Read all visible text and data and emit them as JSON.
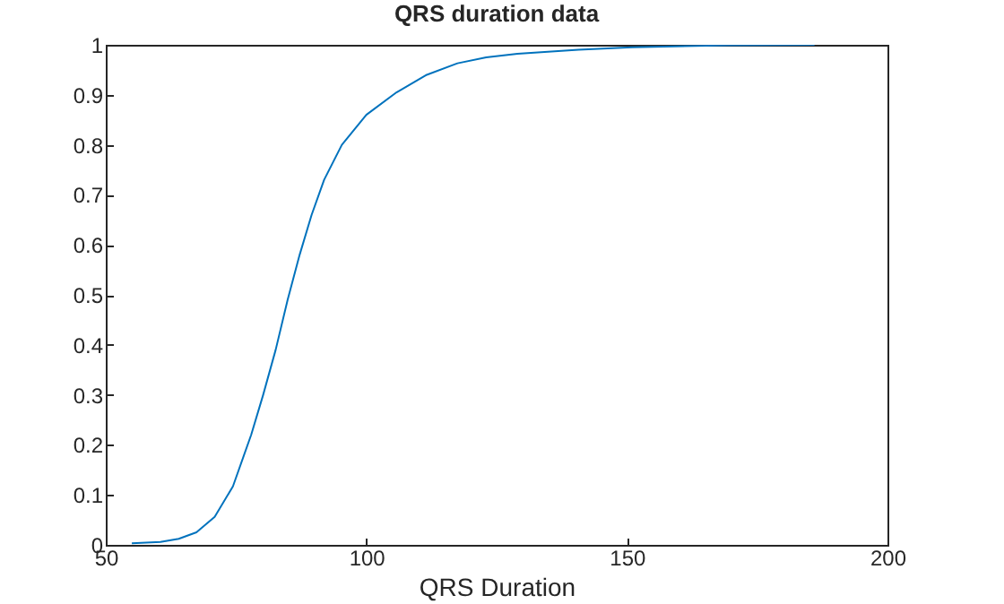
{
  "chart_data": {
    "type": "line",
    "title": "QRS duration data",
    "xlabel": "QRS Duration",
    "x": [
      55,
      60.5,
      64,
      67.4,
      70.9,
      74.4,
      77.9,
      80.2,
      82.6,
      84.9,
      87.2,
      89.5,
      91.9,
      95.3,
      100,
      105.8,
      111.6,
      117.5,
      123,
      129,
      140.7,
      151,
      169.6,
      186
    ],
    "series": [
      {
        "color": "#0072bd",
        "values": [
          0.003,
          0.006,
          0.012,
          0.025,
          0.056,
          0.117,
          0.22,
          0.3,
          0.39,
          0.49,
          0.58,
          0.66,
          0.73,
          0.8,
          0.86,
          0.905,
          0.94,
          0.963,
          0.975,
          0.982,
          0.99,
          0.995,
          0.999,
          1
        ]
      }
    ],
    "xlim": [
      50,
      200
    ],
    "xticks": [
      50,
      100,
      150,
      200
    ],
    "ylim": [
      0,
      1
    ],
    "yticks": [
      0,
      0.1,
      0.2,
      0.3,
      0.4,
      0.5,
      0.6,
      0.7,
      0.8,
      0.9,
      1
    ],
    "grid": false
  }
}
